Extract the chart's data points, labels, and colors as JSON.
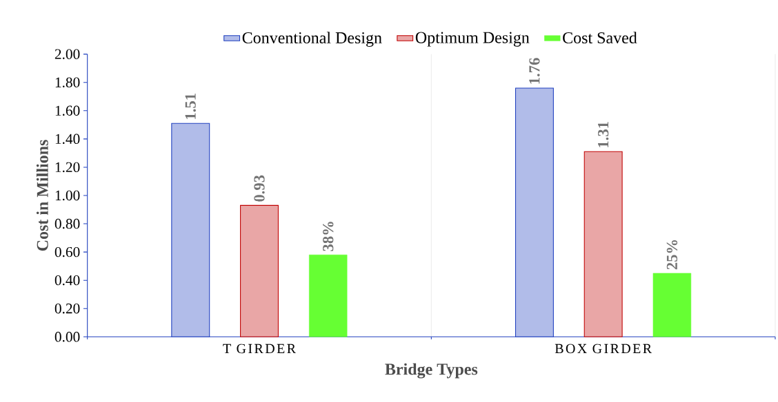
{
  "chart_data": {
    "type": "bar",
    "xlabel": "Bridge Types",
    "ylabel": "Cost in Millions",
    "categories": [
      "T GIRDER",
      "BOX GIRDER"
    ],
    "series": [
      {
        "name": "Conventional Design",
        "color": "#1f3fbf",
        "values": [
          1.51,
          1.76
        ],
        "value_labels": [
          "1.51",
          "1.76"
        ]
      },
      {
        "name": "Optimum Design",
        "color": "#c00000",
        "values": [
          0.93,
          1.31
        ],
        "value_labels": [
          "0.93",
          "1.31"
        ]
      },
      {
        "name": "Cost Saved",
        "color": "#66ff33",
        "values": [
          0.58,
          0.45
        ]
      }
    ],
    "annotations": [
      "38%",
      "25%"
    ],
    "ylim": [
      0,
      2
    ],
    "yticks": [
      {
        "value": 0,
        "label": "0.00"
      },
      {
        "value": 0.2,
        "label": "0.20"
      },
      {
        "value": 0.4,
        "label": "0.40"
      },
      {
        "value": 0.6,
        "label": "0.60"
      },
      {
        "value": 0.8,
        "label": "0.80"
      },
      {
        "value": 1,
        "label": "1.00"
      },
      {
        "value": 1.2,
        "label": "1.20"
      },
      {
        "value": 1.4,
        "label": "1.40"
      },
      {
        "value": 1.6,
        "label": "1.60"
      },
      {
        "value": 1.8,
        "label": "1.80"
      },
      {
        "value": 2,
        "label": "2.00"
      }
    ],
    "legend": "top"
  }
}
